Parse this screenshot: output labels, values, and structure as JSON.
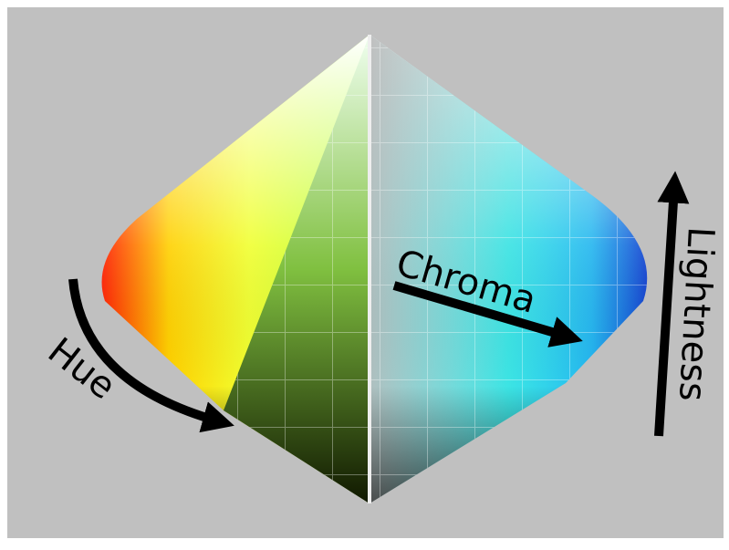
{
  "labels": {
    "chroma": "Chroma",
    "lightness": "Lightness",
    "hue": "Hue"
  }
}
